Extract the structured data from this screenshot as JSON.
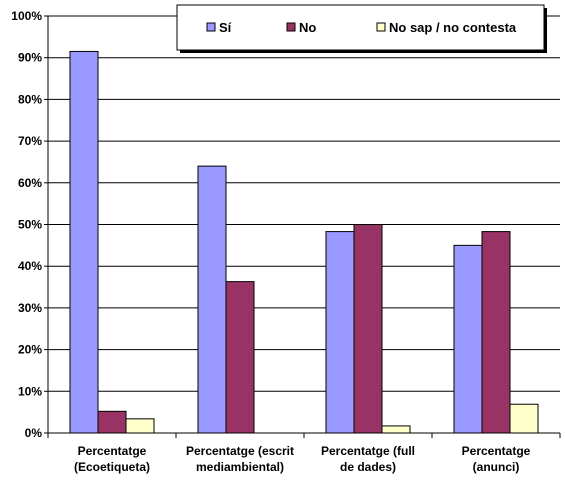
{
  "chart_data": {
    "type": "bar",
    "categories": [
      [
        "Percentatge",
        "(Ecoetiqueta)"
      ],
      [
        "Percentatge (escrit",
        "mediambiental)"
      ],
      [
        "Percentatge (full",
        "de dades)"
      ],
      [
        "Percentatge",
        "(anunci)"
      ]
    ],
    "series": [
      {
        "name": "Sí",
        "color": "#9999ff",
        "values": [
          91.5,
          64,
          48.3,
          45
        ]
      },
      {
        "name": "No",
        "color": "#993366",
        "values": [
          5.2,
          36.3,
          50,
          48.3
        ]
      },
      {
        "name": "No sap / no contesta",
        "color": "#ffffcc",
        "values": [
          3.4,
          0,
          1.7,
          6.9
        ]
      }
    ],
    "ylim": [
      0,
      100
    ],
    "y_ticks": [
      "0%",
      "10%",
      "20%",
      "30%",
      "40%",
      "50%",
      "60%",
      "70%",
      "80%",
      "90%",
      "100%"
    ],
    "grid": true,
    "legend_position": "top-right",
    "title": "",
    "xlabel": "",
    "ylabel": ""
  }
}
